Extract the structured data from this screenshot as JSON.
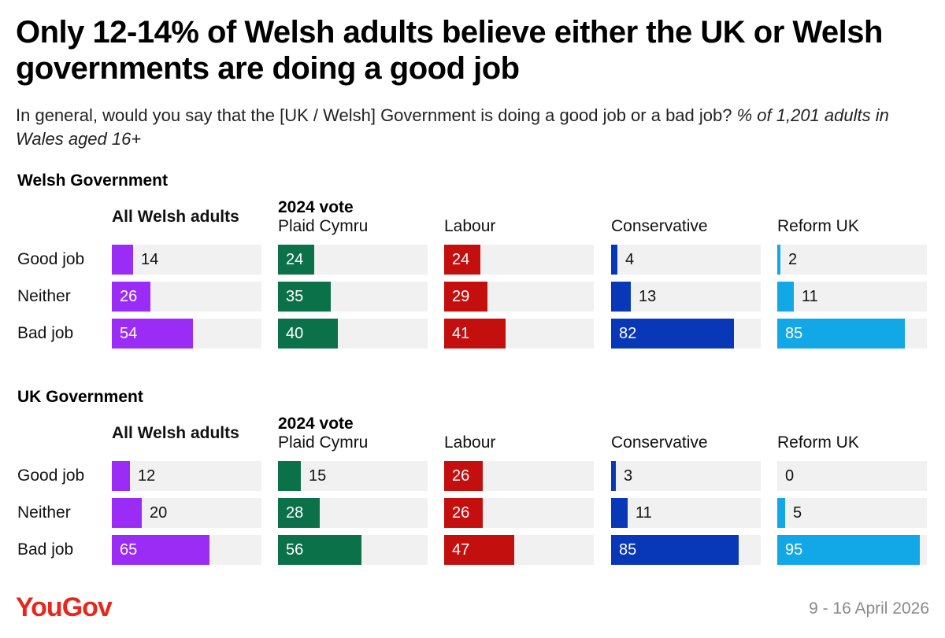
{
  "title": "Only 12-14% of Welsh adults believe either the UK or Welsh governments are doing a good job",
  "subtitle_main": "In general, would you say that the [UK / Welsh] Government is doing a good job or a bad job?",
  "subtitle_note": "% of 1,201 adults in Wales aged 16+",
  "vote_label": "2024 vote",
  "logo": "YouGov",
  "logo_color": "#e8261b",
  "date": "9 - 16 April 2026",
  "colors": {
    "All Welsh adults": "#9b2cf5",
    "Plaid Cymru": "#0b7148",
    "Labour": "#c40f0f",
    "Conservative": "#0838b8",
    "Reform UK": "#12a8e8",
    "track": "#f1f1f1"
  },
  "chart_data": [
    {
      "type": "bar",
      "title": "Welsh Government",
      "categories": [
        "Good job",
        "Neither",
        "Bad job"
      ],
      "groups": [
        "All Welsh adults",
        "Plaid Cymru",
        "Labour",
        "Conservative",
        "Reform UK"
      ],
      "series": [
        {
          "name": "All Welsh adults",
          "values": [
            14,
            26,
            54
          ]
        },
        {
          "name": "Plaid Cymru",
          "values": [
            24,
            35,
            40
          ]
        },
        {
          "name": "Labour",
          "values": [
            24,
            29,
            41
          ]
        },
        {
          "name": "Conservative",
          "values": [
            4,
            13,
            82
          ]
        },
        {
          "name": "Reform UK",
          "values": [
            2,
            11,
            85
          ]
        }
      ],
      "xlim": [
        0,
        100
      ]
    },
    {
      "type": "bar",
      "title": "UK Government",
      "categories": [
        "Good job",
        "Neither",
        "Bad job"
      ],
      "groups": [
        "All Welsh adults",
        "Plaid Cymru",
        "Labour",
        "Conservative",
        "Reform UK"
      ],
      "series": [
        {
          "name": "All Welsh adults",
          "values": [
            12,
            20,
            65
          ]
        },
        {
          "name": "Plaid Cymru",
          "values": [
            15,
            28,
            56
          ]
        },
        {
          "name": "Labour",
          "values": [
            26,
            26,
            47
          ]
        },
        {
          "name": "Conservative",
          "values": [
            3,
            11,
            85
          ]
        },
        {
          "name": "Reform UK",
          "values": [
            0,
            5,
            95
          ]
        }
      ],
      "xlim": [
        0,
        100
      ]
    }
  ]
}
